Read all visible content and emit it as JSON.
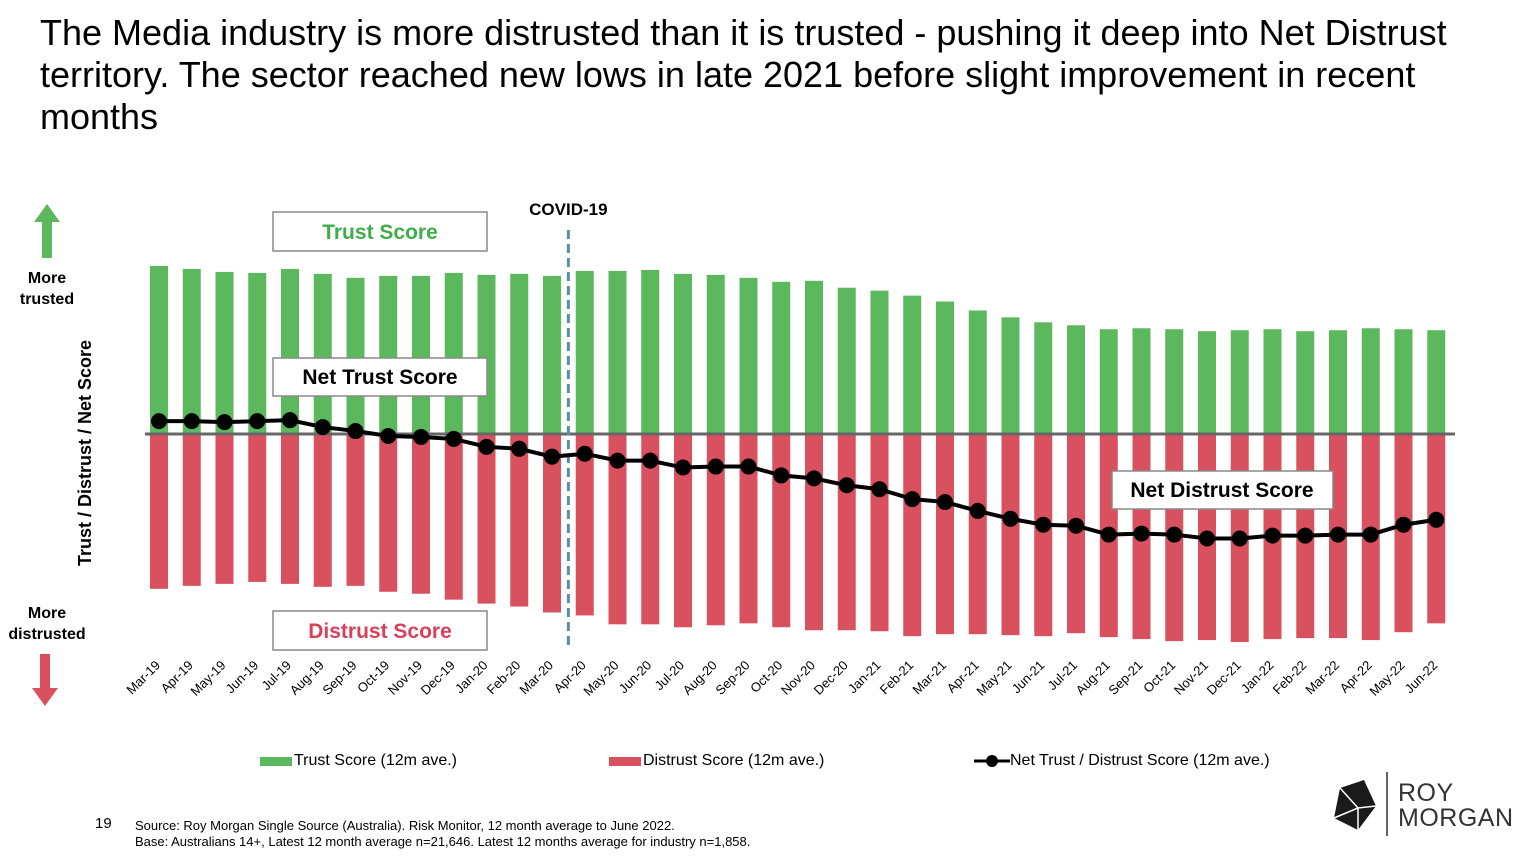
{
  "title": "The Media industry is more distrusted than it is trusted - pushing it deep into Net Distrust territory. The sector reached new lows in late 2021 before slight improvement in recent months",
  "colors": {
    "trust": "#5cb85c",
    "distrust": "#d9505f",
    "net": "#000000",
    "covid_line": "#5b8fa8",
    "trust_label": "#3fae49",
    "distrust_label": "#d9405a"
  },
  "axis": {
    "y_label": "Trust / Distrust / Net Score",
    "top_label": "More trusted",
    "bottom_label": "More distrusted"
  },
  "annotations": {
    "covid": "COVID-19",
    "trust_box": "Trust Score",
    "net_trust_box": "Net Trust Score",
    "net_distrust_box": "Net Distrust Score",
    "distrust_box": "Distrust Score"
  },
  "legend": {
    "trust": "Trust Score (12m ave.)",
    "distrust": "Distrust Score (12m ave.)",
    "net": "Net Trust / Distrust Score (12m ave.)"
  },
  "chart_data": {
    "type": "bar",
    "categories": [
      "Mar-19",
      "Apr-19",
      "May-19",
      "Jun-19",
      "Jul-19",
      "Aug-19",
      "Sep-19",
      "Oct-19",
      "Nov-19",
      "Dec-19",
      "Jan-20",
      "Feb-20",
      "Mar-20",
      "Apr-20",
      "May-20",
      "Jun-20",
      "Jul-20",
      "Aug-20",
      "Sep-20",
      "Oct-20",
      "Nov-20",
      "Dec-20",
      "Jan-21",
      "Feb-21",
      "Mar-21",
      "Apr-21",
      "May-21",
      "Jun-21",
      "Jul-21",
      "Aug-21",
      "Sep-21",
      "Oct-21",
      "Nov-21",
      "Dec-21",
      "Jan-22",
      "Feb-22",
      "Mar-22",
      "Apr-22",
      "May-22",
      "Jun-22"
    ],
    "series": [
      {
        "name": "Trust Score (12m ave.)",
        "values": [
          17.0,
          16.7,
          16.4,
          16.3,
          16.7,
          16.2,
          15.8,
          16.0,
          16.0,
          16.3,
          16.1,
          16.2,
          16.0,
          16.5,
          16.5,
          16.6,
          16.2,
          16.1,
          15.8,
          15.4,
          15.5,
          14.8,
          14.5,
          14.0,
          13.4,
          12.5,
          11.8,
          11.3,
          11.0,
          10.6,
          10.7,
          10.6,
          10.4,
          10.5,
          10.6,
          10.4,
          10.5,
          10.7,
          10.6,
          10.5
        ]
      },
      {
        "name": "Distrust Score (12m ave.)",
        "values": [
          -15.7,
          -15.4,
          -15.2,
          -15.0,
          -15.2,
          -15.5,
          -15.4,
          -16.0,
          -16.2,
          -16.8,
          -17.2,
          -17.5,
          -18.1,
          -18.4,
          -19.3,
          -19.3,
          -19.6,
          -19.4,
          -19.2,
          -19.6,
          -19.9,
          -19.9,
          -20.0,
          -20.5,
          -20.3,
          -20.3,
          -20.4,
          -20.5,
          -20.2,
          -20.6,
          -20.8,
          -21.0,
          -20.9,
          -21.1,
          -20.8,
          -20.7,
          -20.7,
          -20.9,
          -20.1,
          -19.2
        ]
      },
      {
        "name": "Net Trust / Distrust Score (12m ave.)",
        "values": [
          1.3,
          1.3,
          1.2,
          1.3,
          1.4,
          0.7,
          0.3,
          -0.2,
          -0.3,
          -0.5,
          -1.3,
          -1.5,
          -2.3,
          -2.0,
          -2.7,
          -2.7,
          -3.4,
          -3.3,
          -3.3,
          -4.2,
          -4.5,
          -5.2,
          -5.6,
          -6.6,
          -6.9,
          -7.8,
          -8.6,
          -9.2,
          -9.3,
          -10.2,
          -10.1,
          -10.2,
          -10.6,
          -10.6,
          -10.3,
          -10.3,
          -10.2,
          -10.2,
          -9.2,
          -8.7
        ]
      }
    ],
    "ylim": [
      -21.5,
      17.2
    ],
    "covid_marker_between": [
      "Mar-20",
      "Apr-20"
    ]
  },
  "footer": {
    "page_number": "19",
    "source": "Source: Roy Morgan Single Source (Australia). Risk Monitor, 12 month average to June 2022.",
    "base": "Base: Australians 14+, Latest 12 month average n=21,646. Latest 12 months average for industry n=1,858."
  },
  "logo": {
    "line1": "ROY",
    "line2": "MORGAN"
  }
}
